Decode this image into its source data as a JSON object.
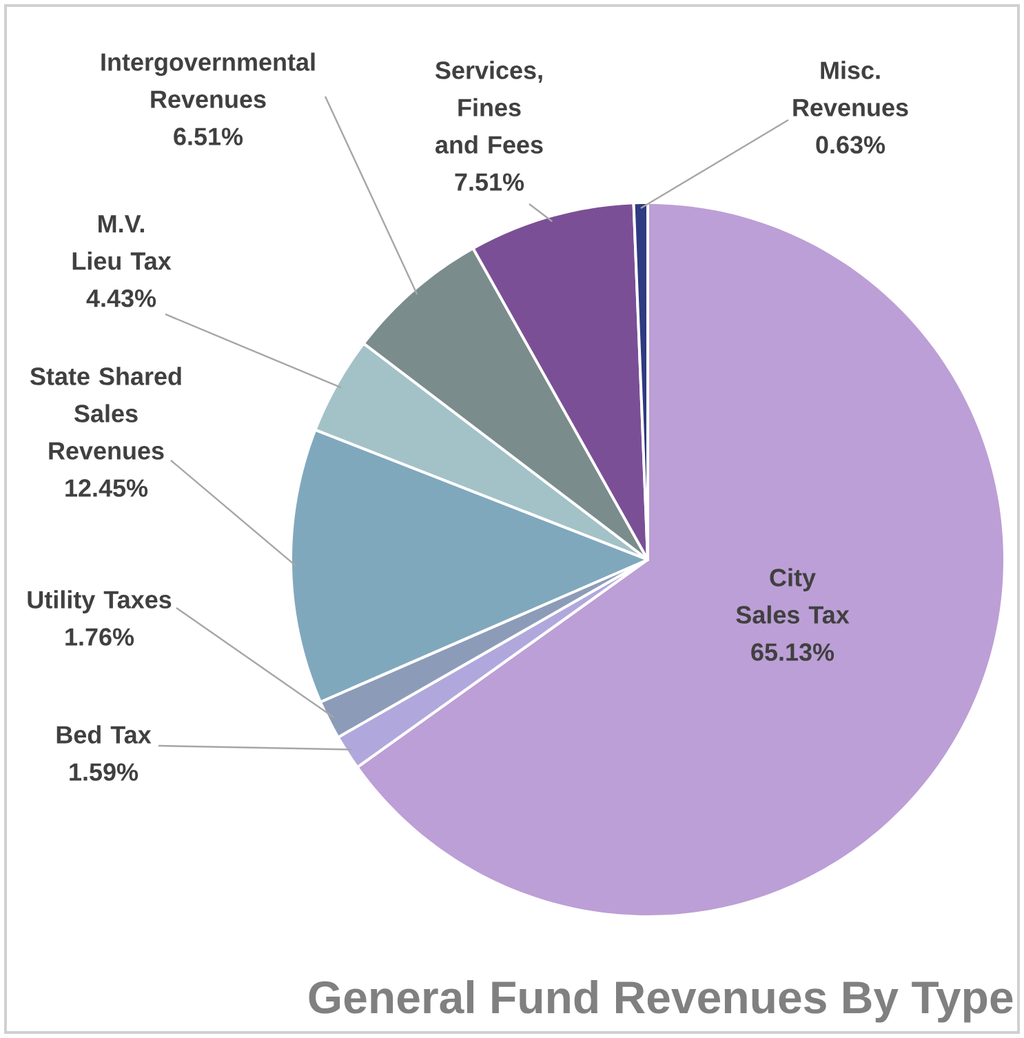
{
  "chart_data": {
    "type": "pie",
    "title": "General Fund Revenues By Type",
    "categories": [
      "City Sales Tax",
      "Bed Tax",
      "Utility Taxes",
      "State Shared Sales Revenues",
      "M.V. Lieu Tax",
      "Intergovernmental Revenues",
      "Services, Fines and Fees",
      "Misc. Revenues"
    ],
    "values": [
      65.13,
      1.59,
      1.76,
      12.45,
      4.43,
      6.51,
      7.51,
      0.63
    ],
    "value_labels": [
      "65.13%",
      "1.59%",
      "1.76%",
      "12.45%",
      "4.43%",
      "6.51%",
      "7.51%",
      "0.63%"
    ],
    "colors": [
      "#bc9fd6",
      "#b0a8dc",
      "#8c9cb8",
      "#80a8bd",
      "#a2c2c8",
      "#7b8c8c",
      "#7b4f96",
      "#2e3b80"
    ]
  }
}
